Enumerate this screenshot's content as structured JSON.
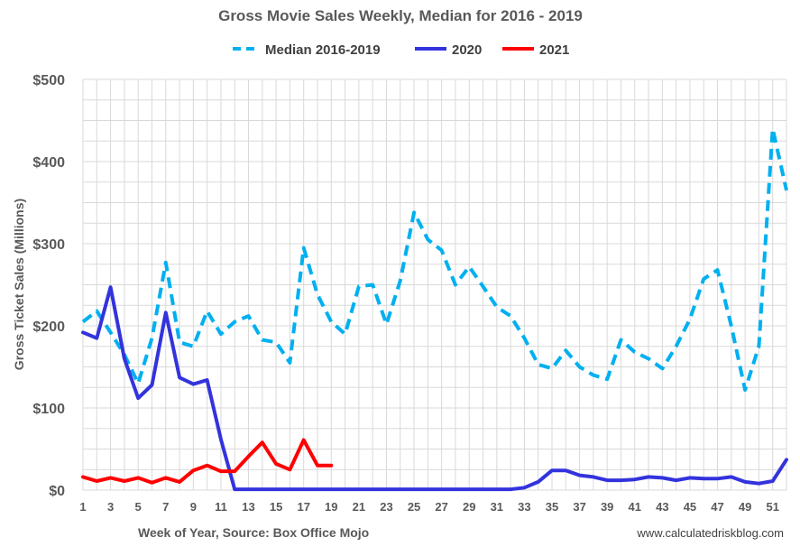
{
  "chart_data": {
    "type": "line",
    "title": "Gross Movie Sales Weekly, Median for 2016 - 2019",
    "xlabel": "Week of Year, Source: Box Office Mojo",
    "ylabel": "Gross Ticket Sales (Millions)",
    "source_note": "www.calculatedriskblog.com",
    "xlim": [
      1,
      52
    ],
    "ylim": [
      0,
      500
    ],
    "x_ticks": [
      "1",
      "3",
      "5",
      "7",
      "9",
      "11",
      "13",
      "15",
      "17",
      "19",
      "21",
      "23",
      "25",
      "27",
      "29",
      "31",
      "33",
      "35",
      "37",
      "39",
      "41",
      "43",
      "45",
      "47",
      "49",
      "51"
    ],
    "y_ticks": [
      "$0",
      "$100",
      "$200",
      "$300",
      "$400",
      "$500"
    ],
    "grid": true,
    "legend_position": "top",
    "series": [
      {
        "name": "Median 2016-2019",
        "color": "#00b0f0",
        "style": "dashed",
        "x": [
          1,
          2,
          3,
          4,
          5,
          6,
          7,
          8,
          9,
          10,
          11,
          12,
          13,
          14,
          15,
          16,
          17,
          18,
          19,
          20,
          21,
          22,
          23,
          24,
          25,
          26,
          27,
          28,
          29,
          30,
          31,
          32,
          33,
          34,
          35,
          36,
          37,
          38,
          39,
          40,
          41,
          42,
          43,
          44,
          45,
          46,
          47,
          48,
          49,
          50,
          51,
          52
        ],
        "values": [
          205,
          218,
          192,
          165,
          130,
          185,
          277,
          180,
          175,
          218,
          190,
          205,
          212,
          183,
          180,
          155,
          295,
          238,
          205,
          190,
          248,
          250,
          202,
          255,
          338,
          305,
          292,
          250,
          272,
          248,
          223,
          212,
          185,
          153,
          148,
          170,
          150,
          140,
          135,
          183,
          168,
          160,
          148,
          175,
          208,
          257,
          268,
          200,
          122,
          175,
          440,
          365
        ]
      },
      {
        "name": "2020",
        "color": "#3333dd",
        "style": "solid",
        "x": [
          1,
          2,
          3,
          4,
          5,
          6,
          7,
          8,
          9,
          10,
          11,
          12,
          13,
          14,
          15,
          16,
          17,
          18,
          19,
          20,
          21,
          22,
          23,
          24,
          25,
          26,
          27,
          28,
          29,
          30,
          31,
          32,
          33,
          34,
          35,
          36,
          37,
          38,
          39,
          40,
          41,
          42,
          43,
          44,
          45,
          46,
          47,
          48,
          49,
          50,
          51,
          52
        ],
        "values": [
          192,
          185,
          247,
          160,
          112,
          128,
          216,
          137,
          129,
          134,
          62,
          1,
          1,
          1,
          1,
          1,
          1,
          1,
          1,
          1,
          1,
          1,
          1,
          1,
          1,
          1,
          1,
          1,
          1,
          1,
          1,
          1,
          3,
          10,
          24,
          24,
          18,
          16,
          12,
          12,
          13,
          16,
          15,
          12,
          15,
          14,
          14,
          16,
          10,
          8,
          11,
          37
        ]
      },
      {
        "name": "2021",
        "color": "#ff0000",
        "style": "solid",
        "x": [
          1,
          2,
          3,
          4,
          5,
          6,
          7,
          8,
          9,
          10,
          11,
          12,
          13,
          14,
          15,
          16,
          17,
          18,
          19
        ],
        "values": [
          16,
          11,
          15,
          11,
          15,
          9,
          15,
          10,
          24,
          30,
          23,
          23,
          41,
          58,
          32,
          25,
          61,
          30,
          30
        ]
      }
    ]
  }
}
